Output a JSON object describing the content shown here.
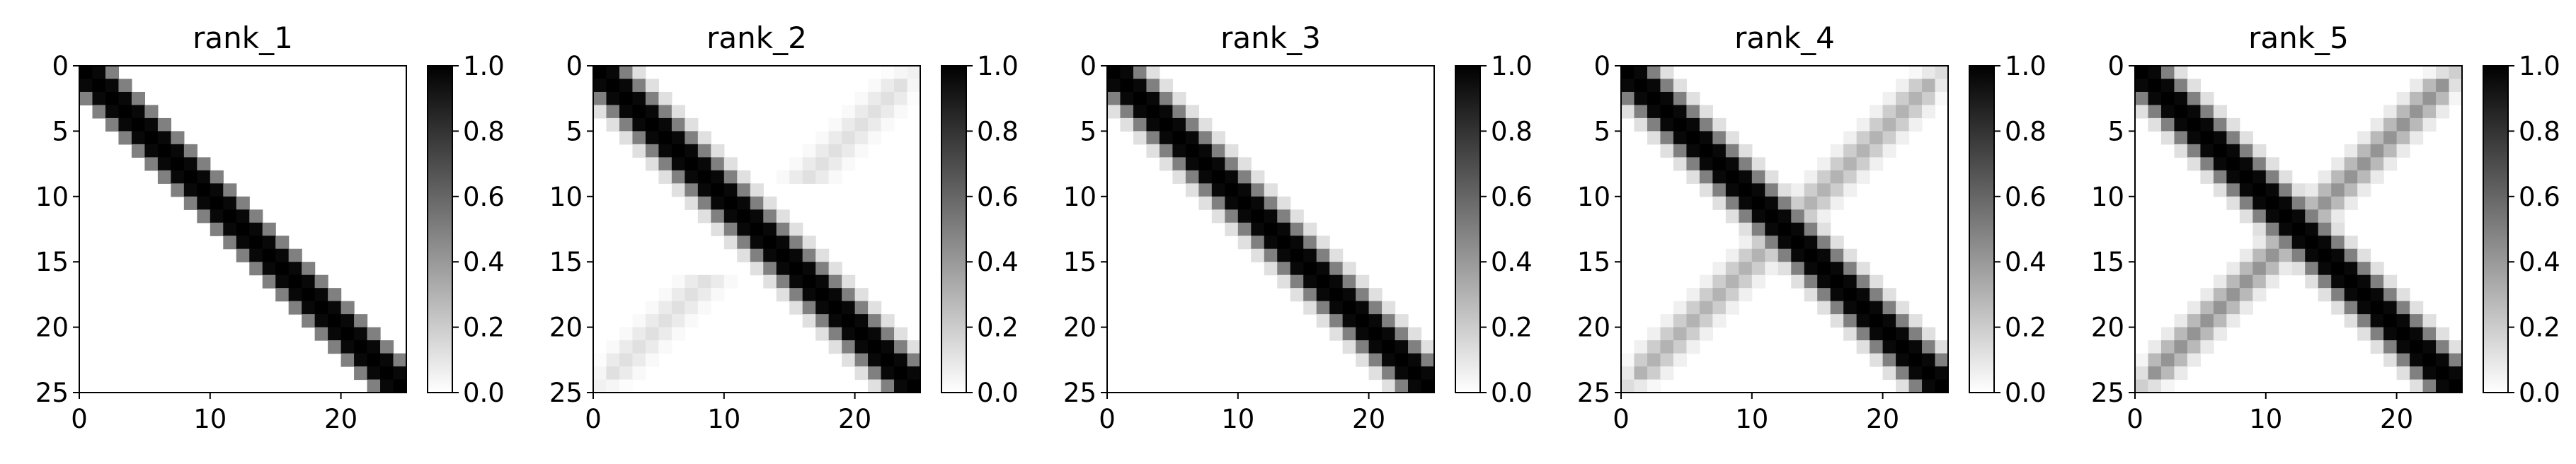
{
  "chart_data": [
    {
      "type": "heatmap",
      "title": "rank_1",
      "x_ticks": [
        0,
        10,
        20
      ],
      "y_ticks": [
        0,
        5,
        10,
        15,
        20,
        25
      ],
      "xlim": [
        0,
        25
      ],
      "ylim": [
        25,
        0
      ],
      "matrix_size": 25,
      "diagonal_width": 2,
      "anti_diagonal": null,
      "colormap": "gray_r",
      "colorbar": {
        "ticks": [
          "0.0",
          "0.2",
          "0.4",
          "0.6",
          "0.8",
          "1.0"
        ],
        "range": [
          0,
          1
        ]
      }
    },
    {
      "type": "heatmap",
      "title": "rank_2",
      "x_ticks": [
        0,
        10,
        20
      ],
      "y_ticks": [
        0,
        5,
        10,
        15,
        20,
        25
      ],
      "xlim": [
        0,
        25
      ],
      "ylim": [
        25,
        0
      ],
      "matrix_size": 25,
      "diagonal_width": 3,
      "anti_diagonal": {
        "strength": 0.12,
        "excluded_center_rows": [
          9,
          15
        ]
      },
      "colormap": "gray_r",
      "colorbar": {
        "ticks": [
          "0.0",
          "0.2",
          "0.4",
          "0.6",
          "0.8",
          "1.0"
        ],
        "range": [
          0,
          1
        ]
      }
    },
    {
      "type": "heatmap",
      "title": "rank_3",
      "x_ticks": [
        0,
        10,
        20
      ],
      "y_ticks": [
        0,
        5,
        10,
        15,
        20,
        25
      ],
      "xlim": [
        0,
        25
      ],
      "ylim": [
        25,
        0
      ],
      "matrix_size": 25,
      "diagonal_width": 3,
      "anti_diagonal": null,
      "colormap": "gray_r",
      "colorbar": {
        "ticks": [
          "0.0",
          "0.2",
          "0.4",
          "0.6",
          "0.8",
          "1.0"
        ],
        "range": [
          0,
          1
        ]
      }
    },
    {
      "type": "heatmap",
      "title": "rank_4",
      "x_ticks": [
        0,
        10,
        20
      ],
      "y_ticks": [
        0,
        5,
        10,
        15,
        20,
        25
      ],
      "xlim": [
        0,
        25
      ],
      "ylim": [
        25,
        0
      ],
      "matrix_size": 25,
      "diagonal_width": 3,
      "anti_diagonal": {
        "strength": 0.3,
        "excluded_center_rows": null
      },
      "colormap": "gray_r",
      "colorbar": {
        "ticks": [
          "0.0",
          "0.2",
          "0.4",
          "0.6",
          "0.8",
          "1.0"
        ],
        "range": [
          0,
          1
        ]
      }
    },
    {
      "type": "heatmap",
      "title": "rank_5",
      "x_ticks": [
        0,
        10,
        20
      ],
      "y_ticks": [
        0,
        5,
        10,
        15,
        20,
        25
      ],
      "xlim": [
        0,
        25
      ],
      "ylim": [
        25,
        0
      ],
      "matrix_size": 25,
      "diagonal_width": 3,
      "anti_diagonal": {
        "strength": 0.42,
        "excluded_center_rows": null
      },
      "colormap": "gray_r",
      "colorbar": {
        "ticks": [
          "0.0",
          "0.2",
          "0.4",
          "0.6",
          "0.8",
          "1.0"
        ],
        "range": [
          0,
          1
        ]
      }
    }
  ]
}
